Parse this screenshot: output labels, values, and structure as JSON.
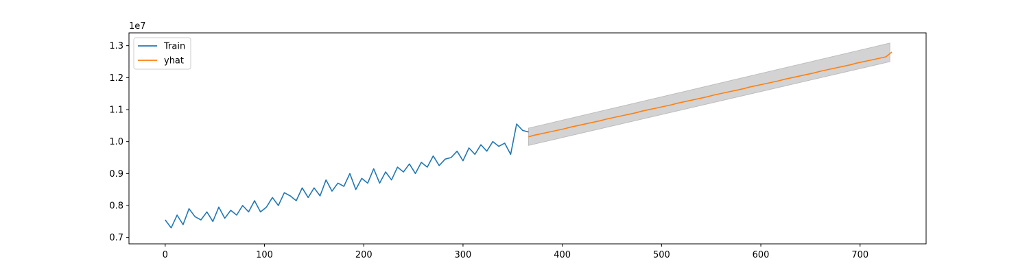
{
  "chart_data": {
    "type": "line",
    "title": "",
    "xlabel": "",
    "ylabel": "",
    "y_offset_label": "1e7",
    "xlim": [
      -36.5,
      766.5
    ],
    "ylim": [
      6.8,
      13.4
    ],
    "x_ticks": [
      0,
      100,
      200,
      300,
      400,
      500,
      600,
      700
    ],
    "x_tick_labels": [
      "0",
      "100",
      "200",
      "300",
      "400",
      "500",
      "600",
      "700"
    ],
    "y_ticks": [
      7.0,
      8.0,
      9.0,
      10.0,
      11.0,
      12.0,
      13.0
    ],
    "y_tick_labels": [
      "0.7",
      "0.8",
      "0.9",
      "1.0",
      "1.1",
      "1.2",
      "1.3"
    ],
    "grid": false,
    "legend": {
      "placement": "top-left",
      "entries": [
        "Train",
        "yhat"
      ]
    },
    "colors": {
      "train": "#1f77b4",
      "yhat": "#ff7f0e",
      "band": "#d3d3d3"
    },
    "series": [
      {
        "name": "Train",
        "x_start": 0,
        "x_step": 6,
        "values": [
          7.55,
          7.3,
          7.7,
          7.4,
          7.9,
          7.65,
          7.55,
          7.8,
          7.5,
          7.95,
          7.6,
          7.85,
          7.7,
          8.0,
          7.8,
          8.15,
          7.8,
          7.95,
          8.25,
          8.0,
          8.4,
          8.3,
          8.15,
          8.55,
          8.25,
          8.55,
          8.3,
          8.8,
          8.45,
          8.7,
          8.6,
          9.0,
          8.5,
          8.85,
          8.7,
          9.15,
          8.7,
          9.05,
          8.8,
          9.2,
          9.05,
          9.3,
          9.0,
          9.35,
          9.2,
          9.55,
          9.25,
          9.45,
          9.5,
          9.7,
          9.4,
          9.8,
          9.6,
          9.9,
          9.7,
          10.0,
          9.85,
          9.95,
          9.6,
          10.55,
          10.35,
          10.3
        ]
      },
      {
        "name": "yhat",
        "x_start": 366,
        "x_step": 6,
        "values": [
          10.15,
          10.2,
          10.24,
          10.28,
          10.32,
          10.36,
          10.4,
          10.45,
          10.49,
          10.53,
          10.57,
          10.61,
          10.65,
          10.7,
          10.74,
          10.78,
          10.82,
          10.86,
          10.9,
          10.95,
          10.99,
          11.03,
          11.07,
          11.11,
          11.15,
          11.2,
          11.24,
          11.28,
          11.32,
          11.36,
          11.4,
          11.45,
          11.49,
          11.53,
          11.57,
          11.61,
          11.65,
          11.7,
          11.74,
          11.78,
          11.82,
          11.86,
          11.9,
          11.95,
          11.99,
          12.03,
          12.07,
          12.11,
          12.15,
          12.2,
          12.24,
          12.28,
          12.32,
          12.36,
          12.4,
          12.45,
          12.49,
          12.53,
          12.57,
          12.61,
          12.65,
          12.8
        ]
      }
    ],
    "band": {
      "name": "yhat interval",
      "x_start": 366,
      "x_end": 730,
      "lower": [
        9.88,
        12.5
      ],
      "upper": [
        10.42,
        13.08
      ]
    }
  }
}
